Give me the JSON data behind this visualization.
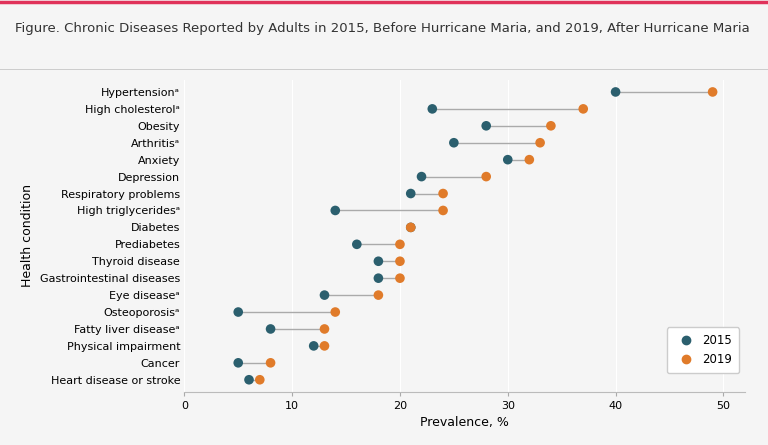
{
  "title": "Figure. Chronic Diseases Reported by Adults in 2015, Before Hurricane Maria, and 2019, After Hurricane Maria",
  "xlabel": "Prevalence, %",
  "ylabel": "Health condition",
  "categories": [
    "Hypertensionᵃ",
    "High cholesterolᵃ",
    "Obesity",
    "Arthritisᵃ",
    "Anxiety",
    "Depression",
    "Respiratory problems",
    "High triglyceridesᵃ",
    "Diabetes",
    "Prediabetes",
    "Thyroid disease",
    "Gastrointestinal diseases",
    "Eye diseaseᵃ",
    "Osteoporosisᵃ",
    "Fatty liver diseaseᵃ",
    "Physical impairment",
    "Cancer",
    "Heart disease or stroke"
  ],
  "values_2015": [
    40,
    23,
    28,
    25,
    30,
    22,
    21,
    14,
    21,
    16,
    18,
    18,
    13,
    5,
    8,
    12,
    5,
    6
  ],
  "values_2019": [
    49,
    37,
    34,
    33,
    32,
    28,
    24,
    24,
    21,
    20,
    20,
    20,
    18,
    14,
    13,
    13,
    8,
    7
  ],
  "color_2015": "#2b5f6e",
  "color_2019": "#e07b2a",
  "line_color": "#aaaaaa",
  "background_color": "#f5f5f5",
  "plot_bg_color": "#f5f5f5",
  "pink_line_color": "#e0325a",
  "xlim": [
    0,
    52
  ],
  "xticks": [
    0,
    10,
    20,
    30,
    40,
    50
  ],
  "marker_size": 48,
  "title_fontsize": 9.5,
  "label_fontsize": 9,
  "tick_fontsize": 8,
  "legend_fontsize": 8.5
}
